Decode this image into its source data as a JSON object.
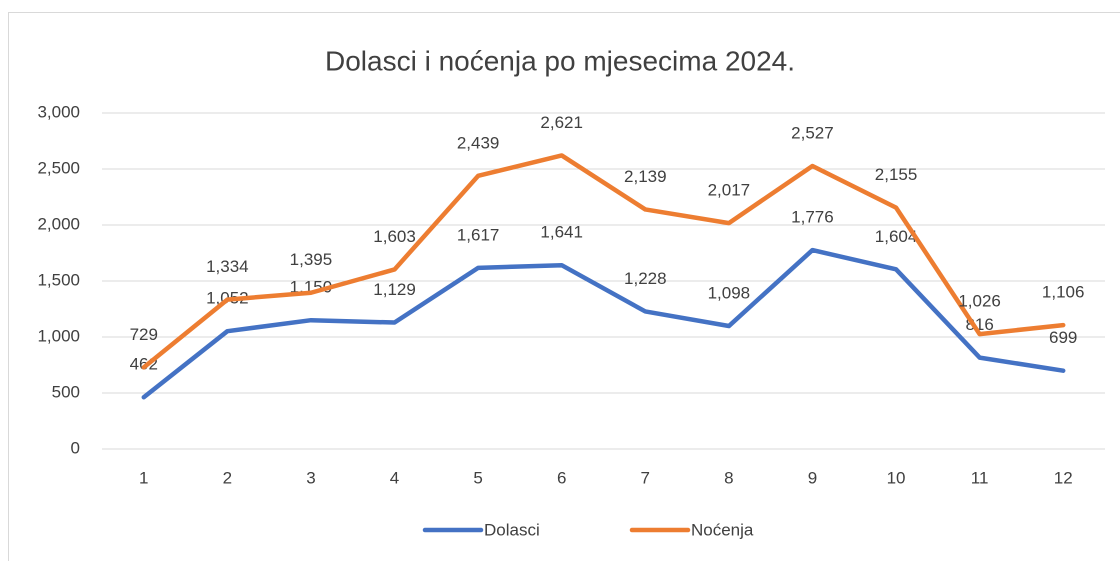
{
  "chart_data": {
    "type": "line",
    "title": "Dolasci i noćenja po mjesecima 2024.",
    "categories": [
      "1",
      "2",
      "3",
      "4",
      "5",
      "6",
      "7",
      "8",
      "9",
      "10",
      "11",
      "12"
    ],
    "series": [
      {
        "name": "Dolasci",
        "color": "#4472c4",
        "values": [
          462,
          1052,
          1150,
          1129,
          1617,
          1641,
          1228,
          1098,
          1776,
          1604,
          816,
          699
        ],
        "value_labels": [
          "462",
          "1,052",
          "1,150",
          "1,129",
          "1,617",
          "1,641",
          "1,228",
          "1,098",
          "1,776",
          "1,604",
          "816",
          "699"
        ]
      },
      {
        "name": "Noćenja",
        "color": "#ed7d31",
        "values": [
          729,
          1334,
          1395,
          1603,
          2439,
          2621,
          2139,
          2017,
          2527,
          2155,
          1026,
          1106
        ],
        "value_labels": [
          "729",
          "1,334",
          "1,395",
          "1,603",
          "2,439",
          "2,621",
          "2,139",
          "2,017",
          "2,527",
          "2,155",
          "1,026",
          "1,106"
        ]
      }
    ],
    "ylim": [
      0,
      3000
    ],
    "yticks": [
      0,
      500,
      {
        "value": 1000,
        "label": "1,000"
      },
      {
        "value": 1500,
        "label": "1,500"
      },
      {
        "value": 2000,
        "label": "2,000"
      },
      {
        "value": 2500,
        "label": "2,500"
      },
      {
        "value": 3000,
        "label": "3,000"
      }
    ],
    "grid": true,
    "legend": "bottom"
  }
}
